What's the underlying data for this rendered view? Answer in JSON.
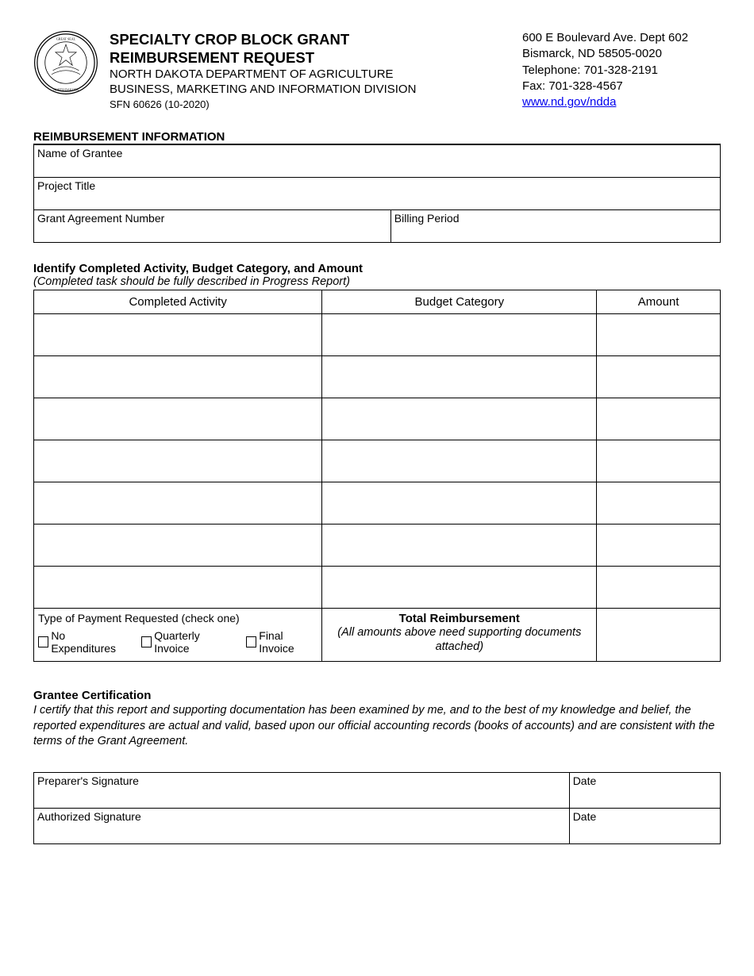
{
  "header": {
    "title_line1": "SPECIALTY CROP BLOCK GRANT",
    "title_line2": "REIMBURSEMENT REQUEST",
    "dept_line1": "NORTH DAKOTA DEPARTMENT OF AGRICULTURE",
    "dept_line2": "BUSINESS, MARKETING AND INFORMATION DIVISION",
    "form_number": "SFN 60626 (10-2020)"
  },
  "contact": {
    "address_line1": "600 E Boulevard Ave. Dept 602",
    "address_line2": "Bismarck, ND 58505-0020",
    "telephone": "Telephone:  701-328-2191",
    "fax": "Fax:  701-328-4567",
    "website_text": "www.nd.gov/ndda",
    "website_url": "http://www.nd.gov/ndda"
  },
  "section1": {
    "heading": "REIMBURSEMENT INFORMATION",
    "fields": {
      "grantee": "Name of Grantee",
      "project_title": "Project Title",
      "grant_number": "Grant Agreement Number",
      "billing_period": "Billing Period"
    }
  },
  "section2": {
    "heading": "Identify Completed Activity, Budget Category, and Amount",
    "note": "(Completed task should be fully described in Progress Report)",
    "columns": {
      "activity": "Completed Activity",
      "category": "Budget Category",
      "amount": "Amount"
    },
    "row_count": 7,
    "payment_type": {
      "label": "Type of Payment Requested (check one)",
      "options": [
        "No Expenditures",
        "Quarterly Invoice",
        "Final Invoice"
      ]
    },
    "total": {
      "title": "Total Reimbursement",
      "note": "(All amounts above need supporting documents attached)"
    }
  },
  "certification": {
    "heading": "Grantee Certification",
    "text": "I certify that this report and supporting documentation has been examined by me, and to the best of my knowledge and belief, the reported expenditures are actual and valid, based upon our official accounting records (books of accounts) and are consistent with the terms of the Grant Agreement."
  },
  "signatures": {
    "preparer": "Preparer's Signature",
    "authorized": "Authorized Signature",
    "date": "Date"
  }
}
